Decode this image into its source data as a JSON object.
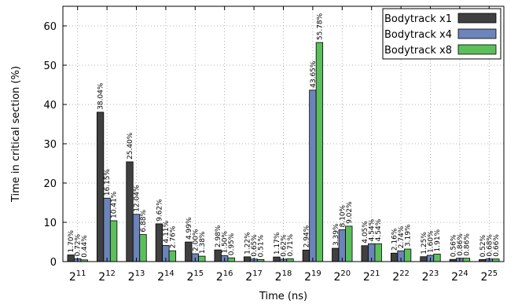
{
  "chart_data": {
    "type": "bar",
    "xlabel": "Time (ns)",
    "ylabel": "Time in critical section (%)",
    "ylim": [
      0,
      65
    ],
    "yticks": [
      0,
      10,
      20,
      30,
      40,
      50,
      60
    ],
    "grid": true,
    "legend_position": "top-right",
    "categories": [
      {
        "base": "2",
        "exp": "11"
      },
      {
        "base": "2",
        "exp": "12"
      },
      {
        "base": "2",
        "exp": "13"
      },
      {
        "base": "2",
        "exp": "14"
      },
      {
        "base": "2",
        "exp": "15"
      },
      {
        "base": "2",
        "exp": "16"
      },
      {
        "base": "2",
        "exp": "17"
      },
      {
        "base": "2",
        "exp": "18"
      },
      {
        "base": "2",
        "exp": "19"
      },
      {
        "base": "2",
        "exp": "20"
      },
      {
        "base": "2",
        "exp": "21"
      },
      {
        "base": "2",
        "exp": "22"
      },
      {
        "base": "2",
        "exp": "23"
      },
      {
        "base": "2",
        "exp": "24"
      },
      {
        "base": "2",
        "exp": "25"
      }
    ],
    "series": [
      {
        "name": "Bodytrack x1",
        "color": "#404040",
        "values": [
          1.7,
          38.04,
          25.4,
          9.62,
          4.99,
          2.98,
          1.22,
          1.17,
          2.94,
          3.39,
          4.05,
          2.16,
          1.25,
          0.56,
          0.52
        ],
        "labels": [
          "1.70%",
          "38.04%",
          "25.40%",
          "9.62%",
          "4.99%",
          "2.98%",
          "1.22%",
          "1.17%",
          "2.94%",
          "3.39%",
          "4.05%",
          "2.16%",
          "1.25%",
          "0.56%",
          "0.52%"
        ]
      },
      {
        "name": "Bodytrack x4",
        "color": "#6b84b9",
        "values": [
          0.72,
          16.15,
          12.04,
          4.11,
          2.0,
          1.5,
          0.65,
          0.62,
          43.65,
          8.1,
          4.54,
          2.74,
          1.6,
          0.86,
          0.68
        ],
        "labels": [
          "0.72%",
          "16.15%",
          "12.04%",
          "4.11%",
          "2.00%",
          "1.50%",
          "0.65%",
          "0.62%",
          "43.65%",
          "8.10%",
          "4.54%",
          "2.74%",
          "1.60%",
          "0.86%",
          "0.68%"
        ]
      },
      {
        "name": "Bodytrack x8",
        "color": "#5cbf5c",
        "values": [
          0.44,
          10.41,
          6.88,
          2.76,
          1.38,
          0.95,
          0.51,
          0.71,
          55.78,
          9.02,
          4.54,
          3.19,
          1.91,
          0.86,
          0.66
        ],
        "labels": [
          "0.44%",
          "10.41%",
          "6.88%",
          "2.76%",
          "1.38%",
          "0.95%",
          "0.51%",
          "0.71%",
          "55.78%",
          "9.02%",
          "4.54%",
          "3.19%",
          "1.91%",
          "0.86%",
          "0.66%"
        ]
      }
    ]
  }
}
